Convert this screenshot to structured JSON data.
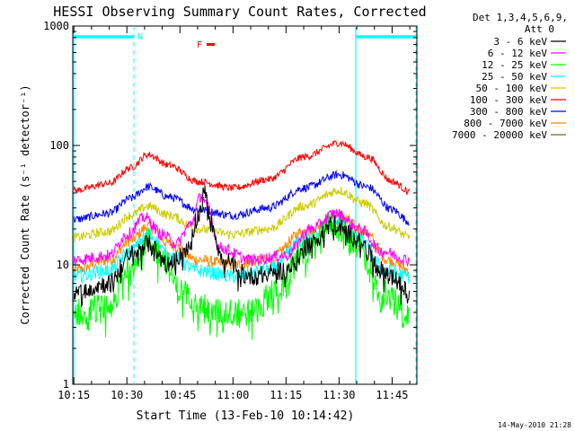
{
  "chart_data": {
    "type": "line",
    "title": "HESSI Observing Summary Count Rates, Corrected",
    "xlabel": "Start Time (13-Feb-10 10:14:42)",
    "ylabel": "Corrected Count Rate (s⁻¹ detector⁻¹)",
    "yscale": "log",
    "ylim": [
      1,
      1000
    ],
    "xlim": [
      "10:14:42",
      "11:52:00"
    ],
    "x_tick_labels": [
      "10:15",
      "10:30",
      "10:45",
      "11:00",
      "11:15",
      "11:30",
      "11:45"
    ],
    "y_tick_labels": [
      "1",
      "10",
      "100",
      "1000"
    ],
    "legend_position": "right, outside plot",
    "legend_header": [
      "Det 1,3,4,5,6,9,",
      "Att 0"
    ],
    "annotations": {
      "night_flag": "N",
      "flare_flag": "F"
    },
    "footer_timestamp": "14-May-2010 21:28",
    "series": [
      {
        "name": "3 - 6 keV",
        "color": "#000000",
        "points": [
          [
            "10:15",
            6
          ],
          [
            "10:25",
            7
          ],
          [
            "10:31",
            12
          ],
          [
            "10:36",
            15
          ],
          [
            "10:42",
            10
          ],
          [
            "10:47",
            13
          ],
          [
            "10:50",
            25
          ],
          [
            "10:52",
            40
          ],
          [
            "10:54",
            22
          ],
          [
            "10:57",
            11
          ],
          [
            "11:05",
            8
          ],
          [
            "11:15",
            9
          ],
          [
            "11:22",
            15
          ],
          [
            "11:28",
            22
          ],
          [
            "11:35",
            17
          ],
          [
            "11:42",
            9
          ],
          [
            "11:50",
            6
          ]
        ]
      },
      {
        "name": "6 - 12 keV",
        "color": "#ff00ff",
        "points": [
          [
            "10:15",
            11
          ],
          [
            "10:25",
            12
          ],
          [
            "10:30",
            18
          ],
          [
            "10:35",
            25
          ],
          [
            "10:40",
            18
          ],
          [
            "10:44",
            15
          ],
          [
            "10:48",
            22
          ],
          [
            "10:51",
            38
          ],
          [
            "10:53",
            30
          ],
          [
            "10:56",
            14
          ],
          [
            "11:05",
            11
          ],
          [
            "11:15",
            12
          ],
          [
            "11:22",
            20
          ],
          [
            "11:29",
            27
          ],
          [
            "11:36",
            20
          ],
          [
            "11:42",
            13
          ],
          [
            "11:50",
            11
          ]
        ]
      },
      {
        "name": "12 - 25 keV",
        "color": "#00ff00",
        "points": [
          [
            "10:15",
            4
          ],
          [
            "10:25",
            4.5
          ],
          [
            "10:31",
            10
          ],
          [
            "10:36",
            16
          ],
          [
            "10:40",
            12
          ],
          [
            "10:45",
            6
          ],
          [
            "10:55",
            4
          ],
          [
            "11:05",
            4
          ],
          [
            "11:12",
            6
          ],
          [
            "11:20",
            13
          ],
          [
            "11:28",
            22
          ],
          [
            "11:35",
            15
          ],
          [
            "11:42",
            6
          ],
          [
            "11:50",
            4
          ]
        ]
      },
      {
        "name": "25 - 50 keV",
        "color": "#00ffff",
        "points": [
          [
            "10:15",
            8
          ],
          [
            "10:25",
            9
          ],
          [
            "10:31",
            13
          ],
          [
            "10:36",
            18
          ],
          [
            "10:42",
            12
          ],
          [
            "10:50",
            9
          ],
          [
            "11:00",
            8
          ],
          [
            "11:10",
            9
          ],
          [
            "11:20",
            16
          ],
          [
            "11:29",
            23
          ],
          [
            "11:36",
            16
          ],
          [
            "11:43",
            9
          ],
          [
            "11:50",
            8
          ]
        ]
      },
      {
        "name": "50 - 100 keV",
        "color": "#cccc00",
        "points": [
          [
            "10:15",
            17
          ],
          [
            "10:25",
            19
          ],
          [
            "10:31",
            26
          ],
          [
            "10:36",
            31
          ],
          [
            "10:42",
            26
          ],
          [
            "10:50",
            20
          ],
          [
            "11:00",
            18
          ],
          [
            "11:10",
            20
          ],
          [
            "11:20",
            31
          ],
          [
            "11:30",
            42
          ],
          [
            "11:37",
            33
          ],
          [
            "11:44",
            21
          ],
          [
            "11:50",
            17
          ]
        ]
      },
      {
        "name": "100 - 300 keV",
        "color": "#ff0000",
        "points": [
          [
            "10:15",
            42
          ],
          [
            "10:25",
            48
          ],
          [
            "10:31",
            65
          ],
          [
            "10:36",
            84
          ],
          [
            "10:42",
            68
          ],
          [
            "10:50",
            50
          ],
          [
            "11:00",
            44
          ],
          [
            "11:10",
            52
          ],
          [
            "11:20",
            80
          ],
          [
            "11:30",
            105
          ],
          [
            "11:38",
            80
          ],
          [
            "11:45",
            50
          ],
          [
            "11:50",
            41
          ]
        ]
      },
      {
        "name": "300 - 800 keV",
        "color": "#0000ff",
        "points": [
          [
            "10:15",
            24
          ],
          [
            "10:25",
            27
          ],
          [
            "10:31",
            36
          ],
          [
            "10:36",
            45
          ],
          [
            "10:42",
            37
          ],
          [
            "10:50",
            29
          ],
          [
            "11:00",
            26
          ],
          [
            "11:10",
            30
          ],
          [
            "11:20",
            44
          ],
          [
            "11:30",
            57
          ],
          [
            "11:38",
            45
          ],
          [
            "11:45",
            29
          ],
          [
            "11:50",
            23
          ]
        ]
      },
      {
        "name": "800 - 7000 keV",
        "color": "#ff8800",
        "points": [
          [
            "10:15",
            9
          ],
          [
            "10:25",
            11
          ],
          [
            "10:31",
            16
          ],
          [
            "10:36",
            21
          ],
          [
            "10:42",
            15
          ],
          [
            "10:50",
            11
          ],
          [
            "11:00",
            10
          ],
          [
            "11:10",
            11
          ],
          [
            "11:20",
            19
          ],
          [
            "11:30",
            26
          ],
          [
            "11:37",
            19
          ],
          [
            "11:44",
            11
          ],
          [
            "11:50",
            9
          ]
        ]
      },
      {
        "name": "7000 - 20000 keV",
        "color": "#886600",
        "points": []
      }
    ]
  }
}
